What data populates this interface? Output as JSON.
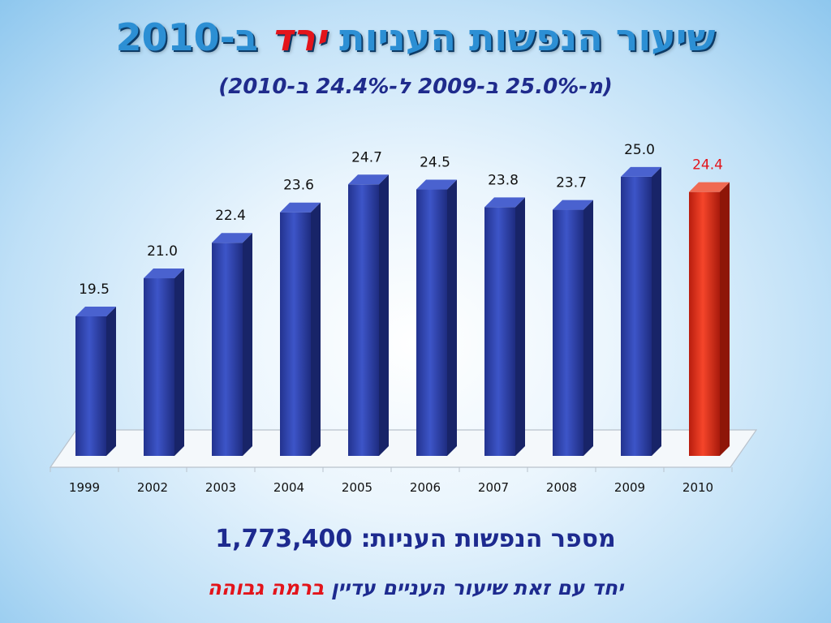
{
  "title": {
    "main": "שיעור הנפשות העניות",
    "accent": "ירד",
    "tail": "ב-2010"
  },
  "subtitle": "(מ-25.0% ב-2009 ל-24.4% ב-2010)",
  "count": {
    "label": "מספר הנפשות העניות:",
    "value": "1,773,400"
  },
  "note": {
    "part1": "יחד עם זאת שיעור העניים עדיין",
    "part2": "ברמה גבוהה"
  },
  "colors": {
    "bar": "#2b3fb0",
    "highlight": "#e8301c",
    "highlight_label": "#e3141b"
  },
  "chart_data": {
    "type": "bar",
    "categories": [
      "1999",
      "2002",
      "2003",
      "2004",
      "2005",
      "2006",
      "2007",
      "2008",
      "2009",
      "2010"
    ],
    "values": [
      19.5,
      21.0,
      22.4,
      23.6,
      24.7,
      24.5,
      23.8,
      23.7,
      25.0,
      24.4
    ],
    "value_labels": [
      "19.5",
      "21.0",
      "22.4",
      "23.6",
      "24.7",
      "24.5",
      "23.8",
      "23.7",
      "25.0",
      "24.4"
    ],
    "highlight_index": 9,
    "ylim": [
      14,
      25.7
    ],
    "grid": false,
    "legend": "none"
  }
}
